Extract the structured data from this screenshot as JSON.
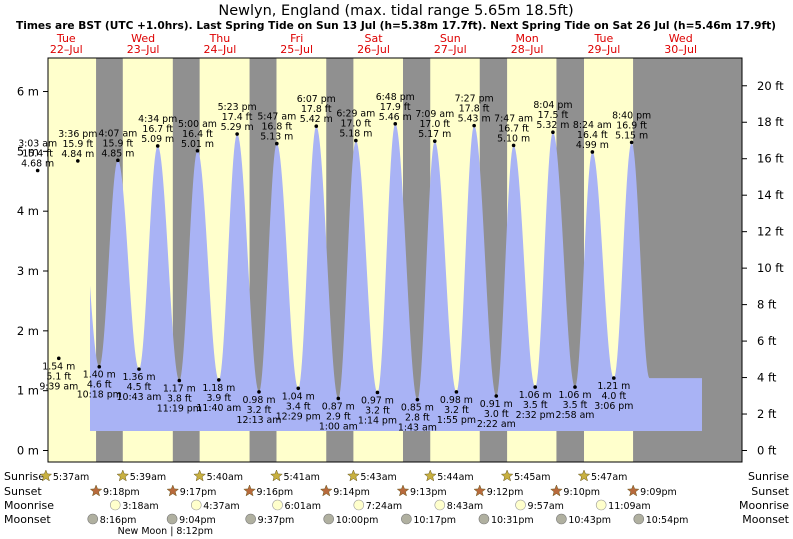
{
  "chart_data": {
    "type": "area",
    "title": "Newlyn, England (max. tidal range 5.65m 18.5ft)",
    "subtitle": "Times are BST (UTC +1.0hrs). Last Spring Tide on Sun 13 Jul (h=5.38m 17.7ft). Next Spring Tide on Sat 26 Jul (h=5.46m 17.9ft)",
    "ylim_m": [
      -0.1,
      6.5
    ],
    "ylim_ft": [
      -0.33,
      21.33
    ],
    "y_ticks_m": [
      "0 m",
      "1 m",
      "2 m",
      "3 m",
      "4 m",
      "5 m",
      "6 m"
    ],
    "y_ticks_ft": [
      "0 ft",
      "2 ft",
      "4 ft",
      "6 ft",
      "8 ft",
      "10 ft",
      "12 ft",
      "14 ft",
      "16 ft",
      "18 ft",
      "20 ft"
    ],
    "days": [
      {
        "dow": "Tue",
        "date": "22–Jul"
      },
      {
        "dow": "Wed",
        "date": "23–Jul"
      },
      {
        "dow": "Thu",
        "date": "24–Jul"
      },
      {
        "dow": "Fri",
        "date": "25–Jul"
      },
      {
        "dow": "Sat",
        "date": "26–Jul"
      },
      {
        "dow": "Sun",
        "date": "27–Jul"
      },
      {
        "dow": "Mon",
        "date": "28–Jul"
      },
      {
        "dow": "Tue",
        "date": "29–Jul"
      },
      {
        "dow": "Wed",
        "date": "30–Jul"
      }
    ],
    "tides": [
      {
        "type": "high",
        "time": "3:03 am",
        "hours": 3.05,
        "m": 4.68,
        "m_label": "4.68 m",
        "ft": "15.4 ft"
      },
      {
        "type": "low",
        "time": "9:39 am",
        "hours": 9.65,
        "m": 1.54,
        "m_label": "1.54 m",
        "ft": "5.1 ft"
      },
      {
        "type": "high",
        "time": "3:36 pm",
        "hours": 15.6,
        "m": 4.84,
        "m_label": "4.84 m",
        "ft": "15.9 ft"
      },
      {
        "type": "low",
        "time": "10:18 pm",
        "hours": 22.3,
        "m": 1.4,
        "m_label": "1.40 m",
        "ft": "4.6 ft"
      },
      {
        "type": "high",
        "time": "4:07 am",
        "hours": 28.117,
        "m": 4.85,
        "m_label": "4.85 m",
        "ft": "15.9 ft"
      },
      {
        "type": "low",
        "time": "10:43 am",
        "hours": 34.717,
        "m": 1.36,
        "m_label": "1.36 m",
        "ft": "4.5 ft"
      },
      {
        "type": "high",
        "time": "4:34 pm",
        "hours": 40.567,
        "m": 5.09,
        "m_label": "5.09 m",
        "ft": "16.7 ft"
      },
      {
        "type": "low",
        "time": "11:19 pm",
        "hours": 47.317,
        "m": 1.17,
        "m_label": "1.17 m",
        "ft": "3.8 ft"
      },
      {
        "type": "high",
        "time": "5:00 am",
        "hours": 53.0,
        "m": 5.01,
        "m_label": "5.01 m",
        "ft": "16.4 ft"
      },
      {
        "type": "low",
        "time": "11:40 am",
        "hours": 59.667,
        "m": 1.18,
        "m_label": "1.18 m",
        "ft": "3.9 ft"
      },
      {
        "type": "high",
        "time": "5:23 pm",
        "hours": 65.383,
        "m": 5.29,
        "m_label": "5.29 m",
        "ft": "17.4 ft"
      },
      {
        "type": "low",
        "time": "12:13 am",
        "hours": 72.217,
        "m": 0.98,
        "m_label": "0.98 m",
        "ft": "3.2 ft"
      },
      {
        "type": "high",
        "time": "5:47 am",
        "hours": 77.783,
        "m": 5.13,
        "m_label": "5.13 m",
        "ft": "16.8 ft"
      },
      {
        "type": "low",
        "time": "12:29 pm",
        "hours": 84.483,
        "m": 1.04,
        "m_label": "1.04 m",
        "ft": "3.4 ft"
      },
      {
        "type": "high",
        "time": "6:07 pm",
        "hours": 90.117,
        "m": 5.42,
        "m_label": "5.42 m",
        "ft": "17.8 ft"
      },
      {
        "type": "low",
        "time": "1:00 am",
        "hours": 97.0,
        "m": 0.87,
        "m_label": "0.87 m",
        "ft": "2.9 ft"
      },
      {
        "type": "high",
        "time": "6:29 am",
        "hours": 102.483,
        "m": 5.18,
        "m_label": "5.18 m",
        "ft": "17.0 ft"
      },
      {
        "type": "low",
        "time": "1:14 pm",
        "hours": 109.233,
        "m": 0.97,
        "m_label": "0.97 m",
        "ft": "3.2 ft"
      },
      {
        "type": "high",
        "time": "6:48 pm",
        "hours": 114.8,
        "m": 5.46,
        "m_label": "5.46 m",
        "ft": "17.9 ft"
      },
      {
        "type": "low",
        "time": "1:43 am",
        "hours": 121.717,
        "m": 0.85,
        "m_label": "0.85 m",
        "ft": "2.8 ft"
      },
      {
        "type": "high",
        "time": "7:09 am",
        "hours": 127.15,
        "m": 5.17,
        "m_label": "5.17 m",
        "ft": "17.0 ft"
      },
      {
        "type": "low",
        "time": "1:55 pm",
        "hours": 133.917,
        "m": 0.98,
        "m_label": "0.98 m",
        "ft": "3.2 ft"
      },
      {
        "type": "high",
        "time": "7:27 pm",
        "hours": 139.45,
        "m": 5.43,
        "m_label": "5.43 m",
        "ft": "17.8 ft"
      },
      {
        "type": "low",
        "time": "2:22 am",
        "hours": 146.367,
        "m": 0.91,
        "m_label": "0.91 m",
        "ft": "3.0 ft"
      },
      {
        "type": "high",
        "time": "7:47 am",
        "hours": 151.783,
        "m": 5.1,
        "m_label": "5.10 m",
        "ft": "16.7 ft"
      },
      {
        "type": "low",
        "time": "2:32 pm",
        "hours": 158.533,
        "m": 1.06,
        "m_label": "1.06 m",
        "ft": "3.5 ft"
      },
      {
        "type": "high",
        "time": "8:04 pm",
        "hours": 164.067,
        "m": 5.32,
        "m_label": "5.32 m",
        "ft": "17.5 ft"
      },
      {
        "type": "low",
        "time": "2:58 am",
        "hours": 170.967,
        "m": 1.06,
        "m_label": "1.06 m",
        "ft": "3.5 ft"
      },
      {
        "type": "high",
        "time": "8:24 am",
        "hours": 176.4,
        "m": 4.99,
        "m_label": "4.99 m",
        "ft": "16.4 ft"
      },
      {
        "type": "low",
        "time": "3:06 pm",
        "hours": 183.1,
        "m": 1.21,
        "m_label": "1.21 m",
        "ft": "4.0 ft"
      },
      {
        "type": "high",
        "time": "8:40 pm",
        "hours": 188.667,
        "m": 5.15,
        "m_label": "5.15 m",
        "ft": "16.9 ft"
      }
    ],
    "rows": {
      "sunrise_label": "Sunrise",
      "sunset_label": "Sunset",
      "moonrise_label": "Moonrise",
      "moonset_label": "Moonset"
    },
    "sun": [
      {
        "sunrise": "5:37am",
        "sunrise_h": 5.617,
        "sunset": "9:18pm",
        "sunset_h": 21.3
      },
      {
        "sunrise": "5:39am",
        "sunrise_h": 29.65,
        "sunset": "9:17pm",
        "sunset_h": 45.283
      },
      {
        "sunrise": "5:40am",
        "sunrise_h": 53.667,
        "sunset": "9:16pm",
        "sunset_h": 69.267
      },
      {
        "sunrise": "5:41am",
        "sunrise_h": 77.683,
        "sunset": "9:14pm",
        "sunset_h": 93.233
      },
      {
        "sunrise": "5:43am",
        "sunrise_h": 101.717,
        "sunset": "9:13pm",
        "sunset_h": 117.217
      },
      {
        "sunrise": "5:44am",
        "sunrise_h": 125.733,
        "sunset": "9:12pm",
        "sunset_h": 141.2
      },
      {
        "sunrise": "5:45am",
        "sunrise_h": 149.75,
        "sunset": "9:10pm",
        "sunset_h": 165.167
      },
      {
        "sunrise": "5:47am",
        "sunrise_h": 173.783,
        "sunset": "9:09pm",
        "sunset_h": 189.15
      }
    ],
    "moonrise": [
      {
        "time": "3:18am",
        "h": 27.3
      },
      {
        "time": "4:37am",
        "h": 52.617
      },
      {
        "time": "6:01am",
        "h": 78.017
      },
      {
        "time": "7:24am",
        "h": 103.4
      },
      {
        "time": "8:43am",
        "h": 128.717
      },
      {
        "time": "9:57am",
        "h": 153.95
      },
      {
        "time": "11:09am",
        "h": 179.15
      }
    ],
    "moonset": [
      {
        "time": "8:16pm",
        "h": 20.267
      },
      {
        "time": "9:04pm",
        "h": 45.067
      },
      {
        "time": "9:37pm",
        "h": 69.617
      },
      {
        "time": "10:00pm",
        "h": 94.0
      },
      {
        "time": "10:17pm",
        "h": 118.283
      },
      {
        "time": "10:31pm",
        "h": 142.517
      },
      {
        "time": "10:43pm",
        "h": 166.717
      },
      {
        "time": "10:54pm",
        "h": 190.9
      }
    ],
    "new_moon": "New Moon | 8:12pm",
    "new_moon_h": 44.2,
    "colors": {
      "day_bg": "#ffffcc",
      "night_bg": "#909090",
      "tide_fill": "#a9b3f5",
      "header_day": "#dd0000",
      "star": "#c8b040",
      "sunset_star": "#b86a3c",
      "moonrise_circle": "#ffffcc",
      "moonset_circle": "#b0b0a0"
    }
  }
}
